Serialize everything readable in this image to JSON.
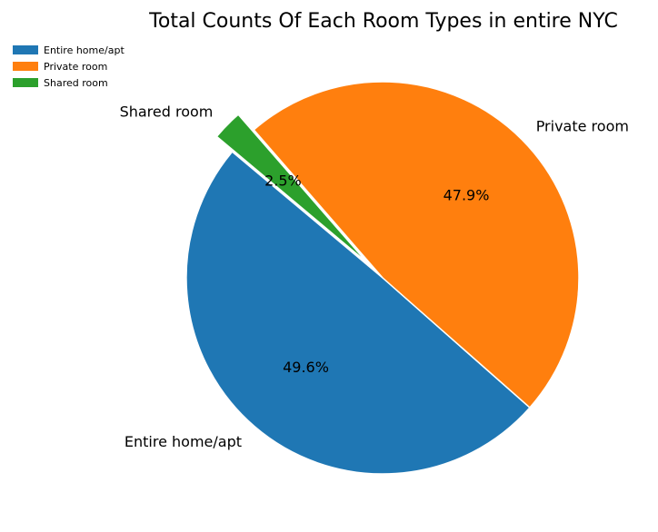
{
  "chart_data": {
    "type": "pie",
    "title": "Total Counts Of Each Room Types in entire NYC",
    "categories": [
      "Entire home/apt",
      "Private room",
      "Shared room"
    ],
    "values": [
      49.6,
      47.9,
      2.5
    ],
    "value_labels": [
      "49.6%",
      "47.9%",
      "2.5%"
    ],
    "colors": [
      "#1f77b4",
      "#ff7f0e",
      "#2ca02c"
    ],
    "exploded": [
      false,
      false,
      true
    ],
    "legend": {
      "position": "top-left",
      "entries": [
        "Entire home/apt",
        "Private room",
        "Shared room"
      ]
    }
  }
}
